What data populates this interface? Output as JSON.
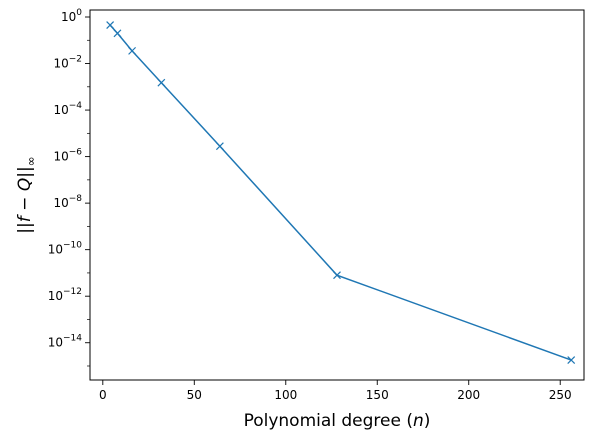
{
  "chart_data": {
    "type": "line",
    "title": "",
    "xlabel": "Polynomial degree (n)",
    "xlabel_parts": {
      "before": "Polynomial degree (",
      "var": "n",
      "after": ")"
    },
    "ylabel": "||f − Q||∞",
    "ylabel_parts": {
      "open": "||",
      "f": "f",
      "minus": " − ",
      "q": "Q",
      "close": "||",
      "sub": "∞"
    },
    "xscale": "linear",
    "yscale": "log",
    "xlim": [
      -7,
      263
    ],
    "ylim": [
      2.5e-16,
      2
    ],
    "xticks": [
      0,
      50,
      100,
      150,
      200,
      250
    ],
    "xtick_labels": [
      "0",
      "50",
      "100",
      "150",
      "200",
      "250"
    ],
    "yticks_exp": [
      0,
      -2,
      -4,
      -6,
      -8,
      -10,
      -12,
      -14
    ],
    "ytick_base": "10",
    "grid": false,
    "legend": "none",
    "color": "#1f77b4",
    "marker": "x",
    "series": [
      {
        "x": [
          4,
          8,
          16,
          32,
          64,
          128,
          256
        ],
        "y": [
          0.45,
          0.2,
          0.035,
          0.0015,
          2.8e-06,
          8e-12,
          1.8e-15
        ]
      }
    ]
  }
}
